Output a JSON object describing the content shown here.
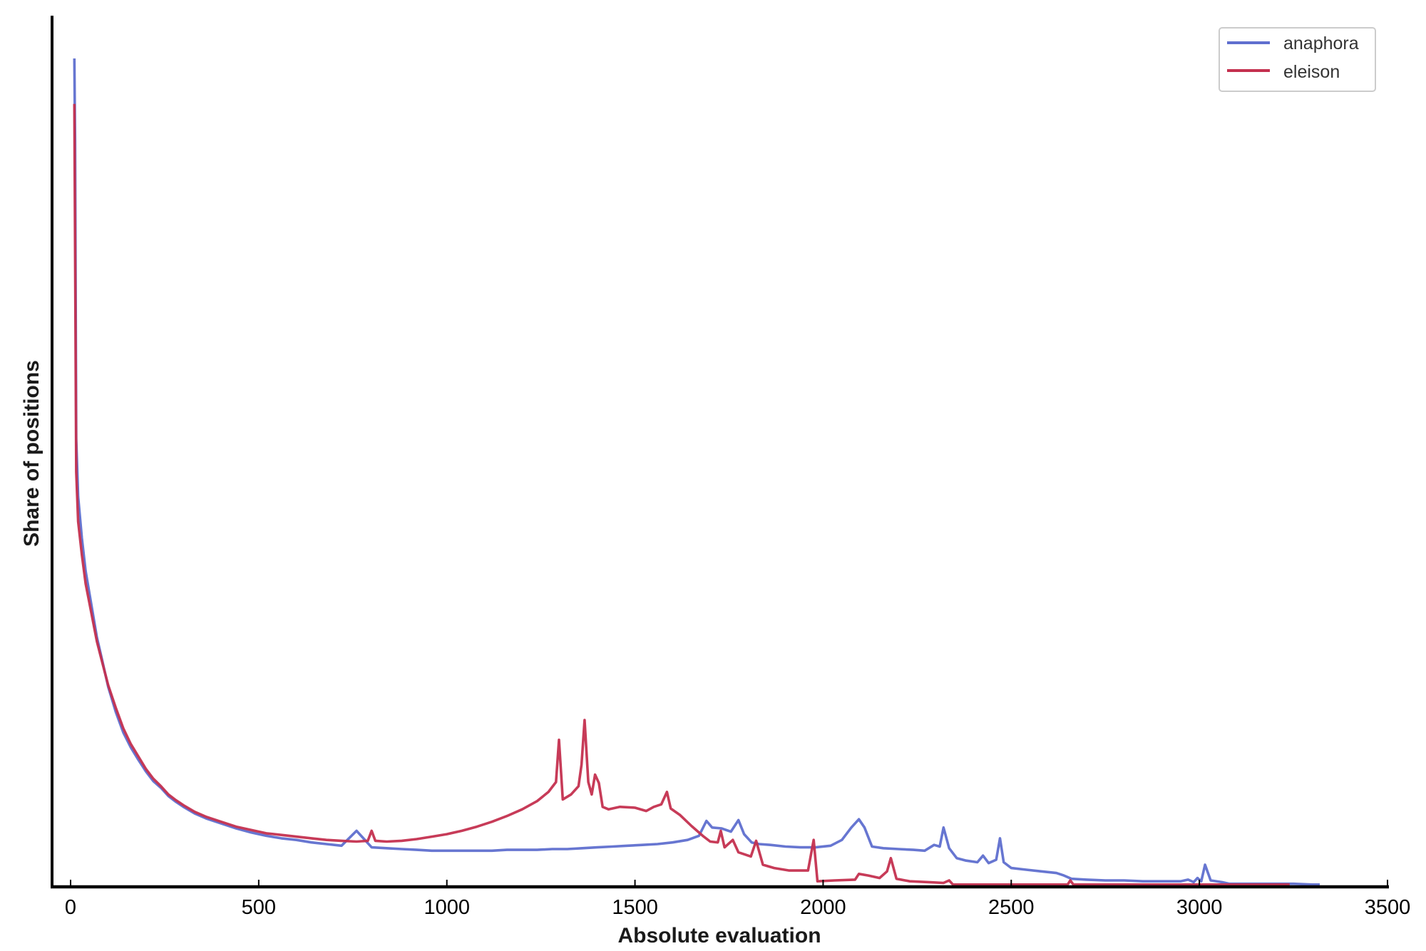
{
  "chart_data": {
    "type": "line",
    "title": "",
    "xlabel": "Absolute evaluation",
    "ylabel": "Share of positions",
    "xlim": [
      -50,
      3500
    ],
    "ylim": [
      0,
      1.06
    ],
    "xticks": [
      0,
      500,
      1000,
      1500,
      2000,
      2500,
      3000,
      3500
    ],
    "xtick_labels": [
      "0",
      "500",
      "1000",
      "1500",
      "2000",
      "2500",
      "3000",
      "3500"
    ],
    "yticks": [],
    "grid": false,
    "legend_position": "upper right",
    "y_units_note": "relative (no y tick labels shown)",
    "series": [
      {
        "name": "anaphora",
        "color": "#5f6fcf",
        "points": [
          [
            10,
            1.0
          ],
          [
            12,
            0.9
          ],
          [
            15,
            0.54
          ],
          [
            20,
            0.47
          ],
          [
            30,
            0.42
          ],
          [
            40,
            0.38
          ],
          [
            55,
            0.34
          ],
          [
            70,
            0.3
          ],
          [
            85,
            0.27
          ],
          [
            100,
            0.24
          ],
          [
            120,
            0.21
          ],
          [
            140,
            0.185
          ],
          [
            160,
            0.167
          ],
          [
            180,
            0.152
          ],
          [
            200,
            0.138
          ],
          [
            220,
            0.126
          ],
          [
            240,
            0.118
          ],
          [
            260,
            0.108
          ],
          [
            280,
            0.101
          ],
          [
            300,
            0.095
          ],
          [
            330,
            0.087
          ],
          [
            360,
            0.081
          ],
          [
            400,
            0.075
          ],
          [
            440,
            0.069
          ],
          [
            480,
            0.064
          ],
          [
            520,
            0.06
          ],
          [
            560,
            0.057
          ],
          [
            600,
            0.055
          ],
          [
            640,
            0.052
          ],
          [
            680,
            0.05
          ],
          [
            720,
            0.048
          ],
          [
            760,
            0.066
          ],
          [
            800,
            0.046
          ],
          [
            840,
            0.045
          ],
          [
            880,
            0.044
          ],
          [
            920,
            0.043
          ],
          [
            960,
            0.042
          ],
          [
            1000,
            0.042
          ],
          [
            1040,
            0.042
          ],
          [
            1080,
            0.042
          ],
          [
            1120,
            0.042
          ],
          [
            1160,
            0.043
          ],
          [
            1200,
            0.043
          ],
          [
            1240,
            0.043
          ],
          [
            1280,
            0.044
          ],
          [
            1320,
            0.044
          ],
          [
            1360,
            0.045
          ],
          [
            1400,
            0.046
          ],
          [
            1440,
            0.047
          ],
          [
            1480,
            0.048
          ],
          [
            1520,
            0.049
          ],
          [
            1560,
            0.05
          ],
          [
            1600,
            0.052
          ],
          [
            1640,
            0.055
          ],
          [
            1670,
            0.06
          ],
          [
            1690,
            0.078
          ],
          [
            1705,
            0.07
          ],
          [
            1730,
            0.069
          ],
          [
            1755,
            0.065
          ],
          [
            1775,
            0.079
          ],
          [
            1790,
            0.062
          ],
          [
            1810,
            0.052
          ],
          [
            1830,
            0.05
          ],
          [
            1860,
            0.049
          ],
          [
            1900,
            0.047
          ],
          [
            1940,
            0.046
          ],
          [
            1980,
            0.046
          ],
          [
            2020,
            0.048
          ],
          [
            2050,
            0.055
          ],
          [
            2075,
            0.07
          ],
          [
            2095,
            0.08
          ],
          [
            2110,
            0.07
          ],
          [
            2130,
            0.047
          ],
          [
            2160,
            0.045
          ],
          [
            2200,
            0.044
          ],
          [
            2240,
            0.043
          ],
          [
            2270,
            0.042
          ],
          [
            2295,
            0.049
          ],
          [
            2310,
            0.047
          ],
          [
            2320,
            0.07
          ],
          [
            2335,
            0.045
          ],
          [
            2355,
            0.033
          ],
          [
            2380,
            0.03
          ],
          [
            2410,
            0.028
          ],
          [
            2425,
            0.036
          ],
          [
            2440,
            0.027
          ],
          [
            2460,
            0.031
          ],
          [
            2470,
            0.057
          ],
          [
            2480,
            0.028
          ],
          [
            2500,
            0.021
          ],
          [
            2540,
            0.019
          ],
          [
            2580,
            0.017
          ],
          [
            2620,
            0.015
          ],
          [
            2640,
            0.012
          ],
          [
            2660,
            0.008
          ],
          [
            2700,
            0.007
          ],
          [
            2750,
            0.006
          ],
          [
            2800,
            0.006
          ],
          [
            2850,
            0.005
          ],
          [
            2900,
            0.005
          ],
          [
            2950,
            0.005
          ],
          [
            2970,
            0.007
          ],
          [
            2985,
            0.004
          ],
          [
            2995,
            0.009
          ],
          [
            3005,
            0.005
          ],
          [
            3015,
            0.025
          ],
          [
            3030,
            0.006
          ],
          [
            3060,
            0.004
          ],
          [
            3080,
            0.002
          ],
          [
            3100,
            0.002
          ],
          [
            3200,
            0.002
          ],
          [
            3250,
            0.002
          ],
          [
            3300,
            0.001
          ],
          [
            3320,
            0.001
          ]
        ]
      },
      {
        "name": "eleison",
        "color": "#c4304f",
        "points": [
          [
            10,
            0.945
          ],
          [
            15,
            0.5
          ],
          [
            20,
            0.44
          ],
          [
            30,
            0.4
          ],
          [
            40,
            0.365
          ],
          [
            55,
            0.33
          ],
          [
            70,
            0.295
          ],
          [
            85,
            0.268
          ],
          [
            100,
            0.242
          ],
          [
            120,
            0.215
          ],
          [
            140,
            0.19
          ],
          [
            160,
            0.171
          ],
          [
            180,
            0.156
          ],
          [
            200,
            0.141
          ],
          [
            220,
            0.129
          ],
          [
            240,
            0.12
          ],
          [
            260,
            0.11
          ],
          [
            280,
            0.103
          ],
          [
            300,
            0.097
          ],
          [
            330,
            0.089
          ],
          [
            360,
            0.083
          ],
          [
            400,
            0.077
          ],
          [
            440,
            0.071
          ],
          [
            480,
            0.067
          ],
          [
            520,
            0.063
          ],
          [
            560,
            0.061
          ],
          [
            600,
            0.059
          ],
          [
            640,
            0.057
          ],
          [
            680,
            0.055
          ],
          [
            720,
            0.054
          ],
          [
            760,
            0.053
          ],
          [
            790,
            0.054
          ],
          [
            800,
            0.066
          ],
          [
            810,
            0.054
          ],
          [
            840,
            0.053
          ],
          [
            880,
            0.054
          ],
          [
            920,
            0.056
          ],
          [
            960,
            0.059
          ],
          [
            1000,
            0.062
          ],
          [
            1040,
            0.066
          ],
          [
            1080,
            0.071
          ],
          [
            1120,
            0.077
          ],
          [
            1160,
            0.084
          ],
          [
            1200,
            0.092
          ],
          [
            1240,
            0.102
          ],
          [
            1270,
            0.113
          ],
          [
            1290,
            0.125
          ],
          [
            1298,
            0.176
          ],
          [
            1308,
            0.104
          ],
          [
            1330,
            0.11
          ],
          [
            1350,
            0.12
          ],
          [
            1358,
            0.146
          ],
          [
            1366,
            0.2
          ],
          [
            1376,
            0.125
          ],
          [
            1385,
            0.11
          ],
          [
            1394,
            0.134
          ],
          [
            1404,
            0.124
          ],
          [
            1414,
            0.095
          ],
          [
            1430,
            0.092
          ],
          [
            1460,
            0.095
          ],
          [
            1500,
            0.094
          ],
          [
            1530,
            0.09
          ],
          [
            1550,
            0.095
          ],
          [
            1570,
            0.098
          ],
          [
            1585,
            0.113
          ],
          [
            1595,
            0.093
          ],
          [
            1620,
            0.085
          ],
          [
            1650,
            0.072
          ],
          [
            1680,
            0.06
          ],
          [
            1700,
            0.053
          ],
          [
            1720,
            0.052
          ],
          [
            1728,
            0.066
          ],
          [
            1738,
            0.046
          ],
          [
            1760,
            0.055
          ],
          [
            1775,
            0.04
          ],
          [
            1808,
            0.035
          ],
          [
            1822,
            0.054
          ],
          [
            1840,
            0.025
          ],
          [
            1870,
            0.021
          ],
          [
            1910,
            0.018
          ],
          [
            1960,
            0.018
          ],
          [
            1975,
            0.055
          ],
          [
            1985,
            0.005
          ],
          [
            2030,
            0.006
          ],
          [
            2085,
            0.007
          ],
          [
            2095,
            0.014
          ],
          [
            2120,
            0.012
          ],
          [
            2150,
            0.009
          ],
          [
            2170,
            0.017
          ],
          [
            2180,
            0.033
          ],
          [
            2195,
            0.008
          ],
          [
            2230,
            0.005
          ],
          [
            2280,
            0.004
          ],
          [
            2320,
            0.003
          ],
          [
            2335,
            0.006
          ],
          [
            2345,
            0.001
          ],
          [
            2400,
            0.001
          ],
          [
            2500,
            0.001
          ],
          [
            2600,
            0.001
          ],
          [
            2650,
            0.001
          ],
          [
            2657,
            0.006
          ],
          [
            2665,
            0.001
          ],
          [
            2800,
            0.001
          ],
          [
            2900,
            0.001
          ],
          [
            3000,
            0.001
          ],
          [
            3100,
            0.001
          ],
          [
            3240,
            0.001
          ]
        ]
      }
    ]
  },
  "legend": {
    "items": [
      {
        "label": "anaphora",
        "color": "#5f6fcf"
      },
      {
        "label": "eleison",
        "color": "#c4304f"
      }
    ]
  },
  "axes": {
    "x_title": "Absolute evaluation",
    "y_title": "Share of positions"
  }
}
